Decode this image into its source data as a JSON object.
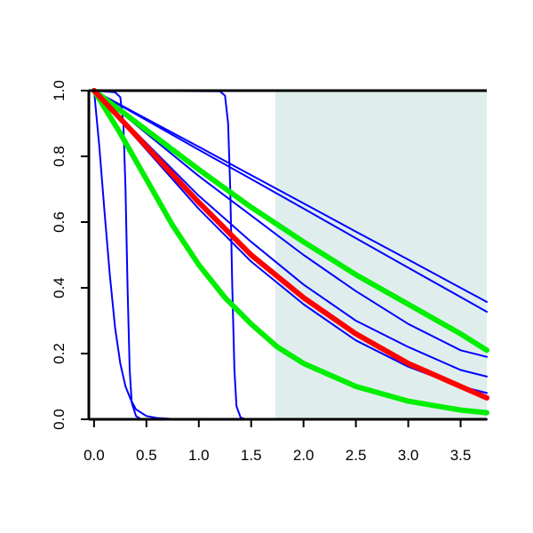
{
  "chart_data": {
    "type": "line",
    "title": "",
    "xlabel": "",
    "ylabel": "",
    "xlim": [
      -0.05,
      3.75
    ],
    "ylim": [
      0.0,
      1.0
    ],
    "xticks": [
      "0.0",
      "0.5",
      "1.0",
      "1.5",
      "2.0",
      "2.5",
      "3.0",
      "3.5"
    ],
    "yticks": [
      "0.0",
      "0.2",
      "0.4",
      "0.6",
      "0.8",
      "1.0"
    ],
    "grid": false,
    "legend": "none",
    "shaded_region": {
      "x_from": 1.73,
      "x_to": 3.75,
      "color": "#dfeeed"
    },
    "series": [
      {
        "color": "#0000ff",
        "width": "thin",
        "points": [
          [
            0.0,
            1.0
          ],
          [
            0.05,
            0.83
          ],
          [
            0.1,
            0.63
          ],
          [
            0.15,
            0.44
          ],
          [
            0.2,
            0.28
          ],
          [
            0.25,
            0.17
          ],
          [
            0.3,
            0.1
          ],
          [
            0.35,
            0.06
          ],
          [
            0.4,
            0.03
          ],
          [
            0.5,
            0.01
          ],
          [
            0.6,
            0.004
          ],
          [
            0.8,
            0.0
          ],
          [
            3.75,
            0.0
          ]
        ]
      },
      {
        "color": "#0000ff",
        "width": "thin",
        "points": [
          [
            0.0,
            1.0
          ],
          [
            0.2,
            0.995
          ],
          [
            0.25,
            0.98
          ],
          [
            0.28,
            0.9
          ],
          [
            0.3,
            0.7
          ],
          [
            0.32,
            0.4
          ],
          [
            0.34,
            0.15
          ],
          [
            0.36,
            0.05
          ],
          [
            0.4,
            0.01
          ],
          [
            0.45,
            0.0
          ],
          [
            3.75,
            0.0
          ]
        ]
      },
      {
        "color": "#0000ff",
        "width": "thin",
        "points": [
          [
            0.0,
            1.0
          ],
          [
            1.2,
            0.998
          ],
          [
            1.25,
            0.985
          ],
          [
            1.28,
            0.9
          ],
          [
            1.3,
            0.7
          ],
          [
            1.32,
            0.4
          ],
          [
            1.34,
            0.15
          ],
          [
            1.36,
            0.04
          ],
          [
            1.4,
            0.005
          ],
          [
            1.45,
            0.0
          ],
          [
            3.75,
            0.0
          ]
        ]
      },
      {
        "color": "#0000ff",
        "width": "thin",
        "points": [
          [
            0.0,
            1.0
          ],
          [
            0.5,
            0.914
          ],
          [
            1.0,
            0.829
          ],
          [
            1.5,
            0.743
          ],
          [
            2.0,
            0.657
          ],
          [
            2.5,
            0.571
          ],
          [
            3.0,
            0.486
          ],
          [
            3.5,
            0.4
          ],
          [
            3.75,
            0.357
          ]
        ]
      },
      {
        "color": "#0000ff",
        "width": "thin",
        "points": [
          [
            0.0,
            1.0
          ],
          [
            0.5,
            0.91
          ],
          [
            1.0,
            0.82
          ],
          [
            1.5,
            0.731
          ],
          [
            2.0,
            0.641
          ],
          [
            2.5,
            0.551
          ],
          [
            3.0,
            0.461
          ],
          [
            3.5,
            0.372
          ],
          [
            3.75,
            0.327
          ]
        ]
      },
      {
        "color": "#0000ff",
        "width": "thin",
        "points": [
          [
            0.0,
            1.0
          ],
          [
            0.5,
            0.87
          ],
          [
            1.0,
            0.74
          ],
          [
            1.5,
            0.62
          ],
          [
            2.0,
            0.5
          ],
          [
            2.5,
            0.39
          ],
          [
            3.0,
            0.29
          ],
          [
            3.5,
            0.21
          ],
          [
            3.75,
            0.19
          ]
        ]
      },
      {
        "color": "#0000ff",
        "width": "thin",
        "points": [
          [
            0.0,
            1.0
          ],
          [
            0.5,
            0.84
          ],
          [
            1.0,
            0.68
          ],
          [
            1.5,
            0.54
          ],
          [
            2.0,
            0.41
          ],
          [
            2.5,
            0.3
          ],
          [
            3.0,
            0.22
          ],
          [
            3.5,
            0.15
          ],
          [
            3.75,
            0.13
          ]
        ]
      },
      {
        "color": "#0000ff",
        "width": "thin",
        "points": [
          [
            0.0,
            1.0
          ],
          [
            0.5,
            0.82
          ],
          [
            1.0,
            0.64
          ],
          [
            1.5,
            0.48
          ],
          [
            2.0,
            0.35
          ],
          [
            2.5,
            0.24
          ],
          [
            3.0,
            0.16
          ],
          [
            3.5,
            0.1
          ],
          [
            3.75,
            0.08
          ]
        ]
      },
      {
        "color": "#00ee00",
        "width": "thick",
        "points": [
          [
            0.0,
            1.0
          ],
          [
            0.5,
            0.88
          ],
          [
            1.0,
            0.76
          ],
          [
            1.5,
            0.645
          ],
          [
            2.0,
            0.54
          ],
          [
            2.5,
            0.44
          ],
          [
            3.0,
            0.35
          ],
          [
            3.5,
            0.26
          ],
          [
            3.75,
            0.21
          ]
        ]
      },
      {
        "color": "#00ee00",
        "width": "thick",
        "points": [
          [
            0.0,
            1.0
          ],
          [
            0.25,
            0.87
          ],
          [
            0.5,
            0.73
          ],
          [
            0.75,
            0.59
          ],
          [
            1.0,
            0.47
          ],
          [
            1.25,
            0.37
          ],
          [
            1.5,
            0.29
          ],
          [
            1.75,
            0.22
          ],
          [
            2.0,
            0.17
          ],
          [
            2.5,
            0.1
          ],
          [
            3.0,
            0.055
          ],
          [
            3.5,
            0.028
          ],
          [
            3.75,
            0.02
          ]
        ]
      },
      {
        "color": "#ff0000",
        "width": "thick",
        "points": [
          [
            0.0,
            1.0
          ],
          [
            0.5,
            0.83
          ],
          [
            1.0,
            0.66
          ],
          [
            1.5,
            0.5
          ],
          [
            2.0,
            0.37
          ],
          [
            2.5,
            0.26
          ],
          [
            3.0,
            0.17
          ],
          [
            3.5,
            0.1
          ],
          [
            3.75,
            0.065
          ]
        ]
      }
    ]
  }
}
